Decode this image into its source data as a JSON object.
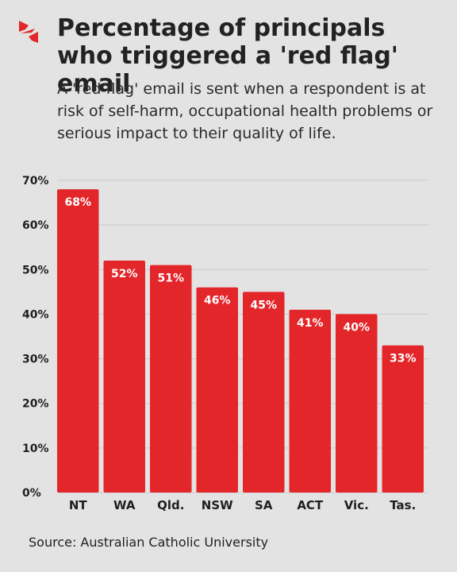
{
  "header": {
    "title": "Percentage of principals who triggered a 'red flag' email",
    "subtitle": "A 'red flag' email is sent when a respondent is at risk of self-harm, occupational health problems or serious impact to their quality of life."
  },
  "footer": {
    "source": "Source: Australian Catholic University"
  },
  "logo": {
    "icon": "red-flag-logo-icon",
    "color": "#e3262a"
  },
  "colors": {
    "bar": "#e3262a",
    "grid": "#c9c9c9",
    "background": "#e3e3e3"
  },
  "chart_data": {
    "type": "bar",
    "title": "Percentage of principals who triggered a 'red flag' email",
    "xlabel": "",
    "ylabel": "",
    "categories": [
      "NT",
      "WA",
      "Qld.",
      "NSW",
      "SA",
      "ACT",
      "Vic.",
      "Tas."
    ],
    "values": [
      68,
      52,
      51,
      46,
      45,
      41,
      40,
      33
    ],
    "data_labels": [
      "68%",
      "52%",
      "51%",
      "46%",
      "45%",
      "41%",
      "40%",
      "33%"
    ],
    "ylim": [
      0,
      70
    ],
    "yticks": [
      0,
      10,
      20,
      30,
      40,
      50,
      60,
      70
    ],
    "ytick_labels": [
      "0%",
      "10%",
      "20%",
      "30%",
      "40%",
      "50%",
      "60%",
      "70%"
    ],
    "grid": true,
    "legend": "none"
  }
}
